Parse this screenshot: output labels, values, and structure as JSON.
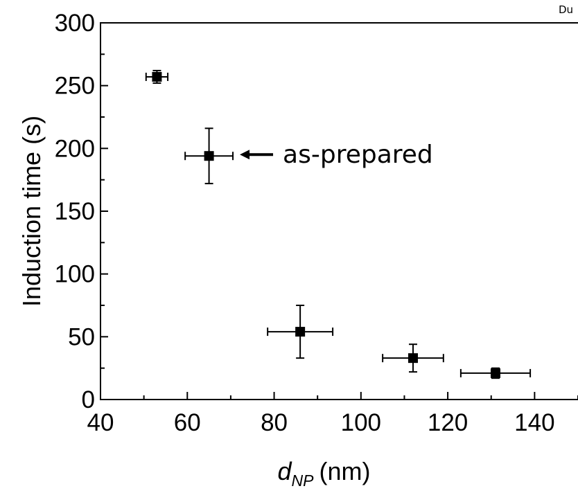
{
  "corner_text": "Du",
  "chart_data": {
    "type": "scatter",
    "xlabel_main": "d",
    "xlabel_sub": "NP",
    "xlabel_unit": "(nm)",
    "ylabel": "Induction time (s)",
    "xlim": [
      40,
      150
    ],
    "ylim": [
      0,
      300
    ],
    "x_ticks": [
      40,
      60,
      80,
      100,
      120,
      140
    ],
    "y_ticks": [
      0,
      50,
      100,
      150,
      200,
      250,
      300
    ],
    "grid": false,
    "annotation": {
      "text": "as-prepared",
      "target_index": 1
    },
    "points": [
      {
        "x": 53,
        "y": 257,
        "xerr": 2.5,
        "yerr": 5
      },
      {
        "x": 65,
        "y": 194,
        "xerr": 5.5,
        "yerr": 22
      },
      {
        "x": 86,
        "y": 54,
        "xerr": 7.5,
        "yerr": 21
      },
      {
        "x": 112,
        "y": 33,
        "xerr": 7,
        "yerr": 11
      },
      {
        "x": 131,
        "y": 21,
        "xerr": 8,
        "yerr": 4
      }
    ]
  }
}
